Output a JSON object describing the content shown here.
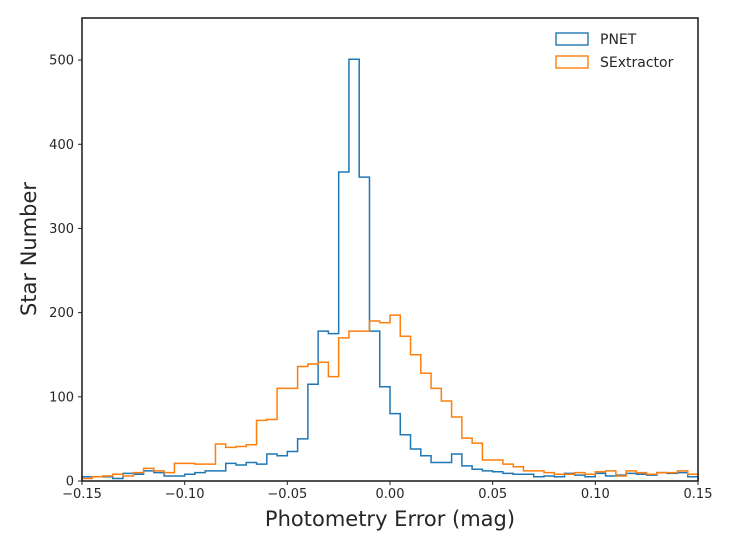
{
  "chart_data": {
    "type": "histogram",
    "title": "",
    "xlabel": "Photometry Error (mag)",
    "ylabel": "Star Number",
    "xlim": [
      -0.15,
      0.15
    ],
    "ylim": [
      0,
      550
    ],
    "grid": false,
    "legend_position": "top-right",
    "x_ticks": [
      {
        "value": -0.15,
        "label": "−0.15"
      },
      {
        "value": -0.1,
        "label": "−0.10"
      },
      {
        "value": -0.05,
        "label": "−0.05"
      },
      {
        "value": 0.0,
        "label": "0.00"
      },
      {
        "value": 0.05,
        "label": "0.05"
      },
      {
        "value": 0.1,
        "label": "0.10"
      },
      {
        "value": 0.15,
        "label": "0.15"
      }
    ],
    "y_ticks": [
      {
        "value": 0,
        "label": "0"
      },
      {
        "value": 100,
        "label": "100"
      },
      {
        "value": 200,
        "label": "200"
      },
      {
        "value": 300,
        "label": "300"
      },
      {
        "value": 400,
        "label": "400"
      },
      {
        "value": 500,
        "label": "500"
      }
    ],
    "bins": [
      -0.15,
      -0.145,
      -0.14,
      -0.135,
      -0.13,
      -0.125,
      -0.12,
      -0.115,
      -0.11,
      -0.105,
      -0.1,
      -0.095,
      -0.09,
      -0.085,
      -0.08,
      -0.075,
      -0.07,
      -0.065,
      -0.06,
      -0.055,
      -0.05,
      -0.045,
      -0.04,
      -0.035,
      -0.03,
      -0.025,
      -0.02,
      -0.015,
      -0.01,
      -0.005,
      0.0,
      0.005,
      0.01,
      0.015,
      0.02,
      0.025,
      0.03,
      0.035,
      0.04,
      0.045,
      0.05,
      0.055,
      0.06,
      0.065,
      0.07,
      0.075,
      0.08,
      0.085,
      0.09,
      0.095,
      0.1,
      0.105,
      0.11,
      0.115,
      0.12,
      0.125,
      0.13,
      0.135,
      0.14,
      0.145,
      0.15
    ],
    "series": [
      {
        "name": "PNET",
        "color": "#1f77b4",
        "values": [
          5,
          5,
          5,
          3,
          9,
          8,
          12,
          10,
          6,
          6,
          8,
          10,
          12,
          12,
          21,
          19,
          22,
          20,
          32,
          30,
          35,
          50,
          115,
          178,
          175,
          367,
          501,
          361,
          178,
          112,
          80,
          55,
          38,
          30,
          22,
          22,
          32,
          18,
          14,
          12,
          11,
          9,
          8,
          8,
          5,
          6,
          5,
          9,
          7,
          5,
          9,
          6,
          7,
          9,
          8,
          7,
          10,
          9,
          10,
          5
        ]
      },
      {
        "name": "SExtractor",
        "color": "#ff7f0e",
        "values": [
          3,
          5,
          6,
          8,
          6,
          10,
          15,
          12,
          10,
          21,
          21,
          20,
          20,
          44,
          40,
          41,
          43,
          72,
          73,
          110,
          110,
          136,
          139,
          141,
          124,
          170,
          178,
          178,
          190,
          188,
          197,
          172,
          150,
          128,
          110,
          95,
          76,
          51,
          45,
          25,
          25,
          20,
          17,
          12,
          12,
          10,
          8,
          8,
          10,
          8,
          11,
          12,
          6,
          12,
          10,
          8,
          10,
          10,
          12,
          8
        ]
      }
    ]
  }
}
